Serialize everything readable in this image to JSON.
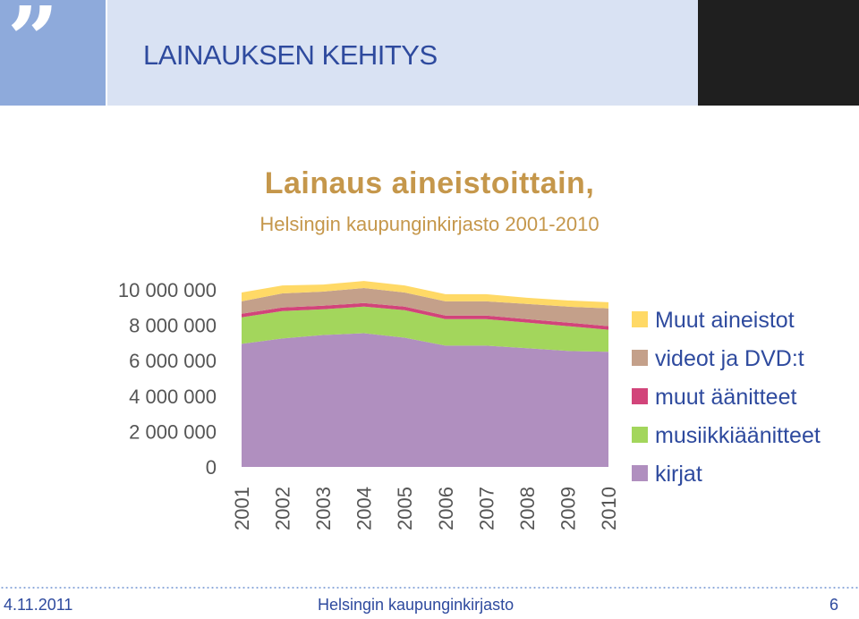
{
  "header": {
    "quote_glyph": "”",
    "title": "LAINAUKSEN KEHITYS"
  },
  "chart_data": {
    "type": "area",
    "title": "Lainaus aineistoittain,",
    "subtitle": "Helsingin kaupunginkirjasto 2001-2010",
    "categories": [
      "2001",
      "2002",
      "2003",
      "2004",
      "2005",
      "2006",
      "2007",
      "2008",
      "2009",
      "2010"
    ],
    "y_ticks": [
      "0",
      "2 000 000",
      "4 000 000",
      "6 000 000",
      "8 000 000",
      "10 000 000"
    ],
    "ylim": [
      0,
      10000000
    ],
    "stacked": true,
    "legend_position": "right",
    "grid": false,
    "series": [
      {
        "name": "kirjat",
        "color": "#b08fbf",
        "values": [
          6950000,
          7250000,
          7450000,
          7550000,
          7300000,
          6850000,
          6850000,
          6700000,
          6550000,
          6500000
        ]
      },
      {
        "name": "musiikkiäänitteet",
        "color": "#a3d65c",
        "values": [
          1500000,
          1550000,
          1450000,
          1500000,
          1550000,
          1500000,
          1500000,
          1450000,
          1400000,
          1250000
        ]
      },
      {
        "name": "muut äänitteet",
        "color": "#d2447a",
        "values": [
          200000,
          200000,
          200000,
          200000,
          200000,
          200000,
          200000,
          200000,
          200000,
          200000
        ]
      },
      {
        "name": "videot ja DVD:t",
        "color": "#c4a08a",
        "values": [
          700000,
          800000,
          800000,
          850000,
          800000,
          800000,
          800000,
          850000,
          900000,
          1000000
        ]
      },
      {
        "name": "Muut aineistot",
        "color": "#ffd966",
        "values": [
          500000,
          450000,
          400000,
          400000,
          400000,
          400000,
          400000,
          350000,
          350000,
          350000
        ]
      }
    ]
  },
  "footer": {
    "date": "4.11.2011",
    "organization": "Helsingin kaupunginkirjasto",
    "page_number": "6"
  }
}
